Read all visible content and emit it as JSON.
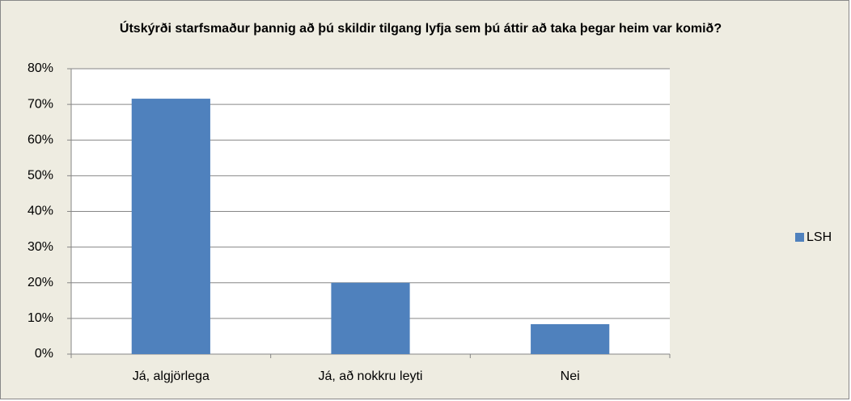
{
  "chart_data": {
    "type": "bar",
    "title": "Útskýrði starfsmaður þannig að þú skildir tilgang lyfja sem þú áttir að taka þegar heim var komið?",
    "categories": [
      "Já, algjörlega",
      "Já, að nokkru  leyti",
      "Nei"
    ],
    "series": [
      {
        "name": "LSH",
        "color": "#4f81bd",
        "values": [
          71.6,
          20,
          8.4
        ]
      }
    ],
    "ylim": [
      0,
      80
    ],
    "yticks": [
      {
        "value": 0,
        "label": "0%"
      },
      {
        "value": 10,
        "label": "10%"
      },
      {
        "value": 20,
        "label": "20%"
      },
      {
        "value": 30,
        "label": "30%"
      },
      {
        "value": 40,
        "label": "40%"
      },
      {
        "value": 50,
        "label": "50%"
      },
      {
        "value": 60,
        "label": "60%"
      },
      {
        "value": 70,
        "label": "70%"
      },
      {
        "value": 80,
        "label": "80%"
      }
    ],
    "grid": true,
    "legend": "right"
  }
}
